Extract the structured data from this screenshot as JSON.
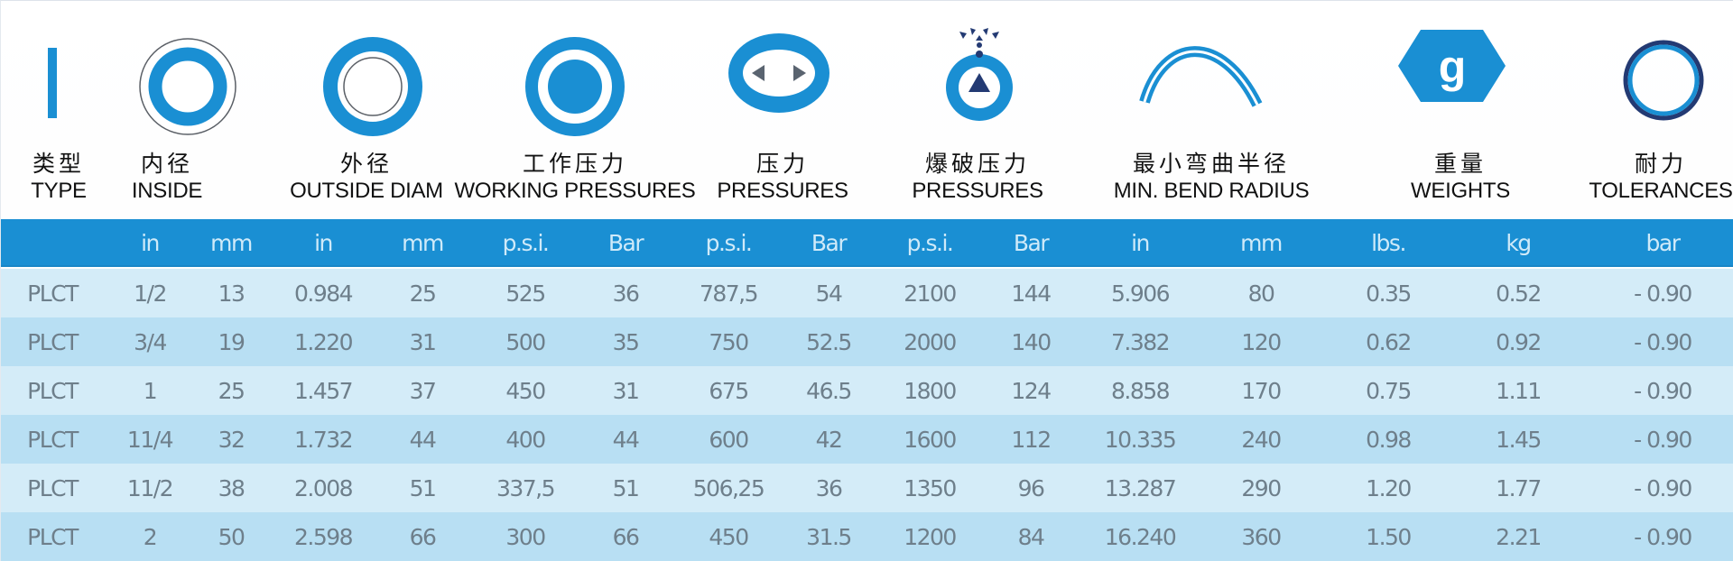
{
  "headers": [
    {
      "id": "type",
      "cn": "类型",
      "en": "TYPE"
    },
    {
      "id": "inside",
      "cn": "内径",
      "en": "INSIDE"
    },
    {
      "id": "outside",
      "cn": "外径",
      "en": "OUTSIDE DIAM"
    },
    {
      "id": "working",
      "cn": "工作压力",
      "en": "WORKING PRESSURES"
    },
    {
      "id": "pressure",
      "cn": "压力",
      "en": "PRESSURES"
    },
    {
      "id": "burst",
      "cn": "爆破压力",
      "en": "PRESSURES"
    },
    {
      "id": "bend",
      "cn": "最小弯曲半径",
      "en": "MIN. BEND RADIUS"
    },
    {
      "id": "weight",
      "cn": "重量",
      "en": "WEIGHTS"
    },
    {
      "id": "tol",
      "cn": "耐力",
      "en": "TOLERANCES"
    }
  ],
  "units": [
    "in",
    "mm",
    "in",
    "mm",
    "p.s.i.",
    "Bar",
    "p.s.i.",
    "Bar",
    "p.s.i.",
    "Bar",
    "in",
    "mm",
    "lbs.",
    "kg",
    "bar"
  ],
  "rows": [
    [
      "PLCT",
      "1/2",
      "13",
      "0.984",
      "25",
      "525",
      "36",
      "787,5",
      "54",
      "2100",
      "144",
      "5.906",
      "80",
      "0.35",
      "0.52",
      "- 0.90"
    ],
    [
      "PLCT",
      "3/4",
      "19",
      "1.220",
      "31",
      "500",
      "35",
      "750",
      "52.5",
      "2000",
      "140",
      "7.382",
      "120",
      "0.62",
      "0.92",
      "- 0.90"
    ],
    [
      "PLCT",
      "1",
      "25",
      "1.457",
      "37",
      "450",
      "31",
      "675",
      "46.5",
      "1800",
      "124",
      "8.858",
      "170",
      "0.75",
      "1.11",
      "- 0.90"
    ],
    [
      "PLCT",
      "11/4",
      "32",
      "1.732",
      "44",
      "400",
      "44",
      "600",
      "42",
      "1600",
      "112",
      "10.335",
      "240",
      "0.98",
      "1.45",
      "- 0.90"
    ],
    [
      "PLCT",
      "11/2",
      "38",
      "2.008",
      "51",
      "337,5",
      "51",
      "506,25",
      "36",
      "1350",
      "96",
      "13.287",
      "290",
      "1.20",
      "1.77",
      "- 0.90"
    ],
    [
      "PLCT",
      "2",
      "50",
      "2.598",
      "66",
      "300",
      "66",
      "450",
      "31.5",
      "1200",
      "84",
      "16.240",
      "360",
      "1.50",
      "2.21",
      "- 0.90"
    ]
  ],
  "icons": {
    "type": "bar-icon",
    "inside": "inner-diameter-ring-icon",
    "outside": "outer-diameter-ring-icon",
    "working": "working-pressure-disc-icon",
    "pressure": "pressure-arrows-icon",
    "burst": "burst-pressure-icon",
    "bend": "bend-radius-arc-icon",
    "weight": "weight-hexagon-icon",
    "tol": "tolerance-ring-icon",
    "weight_glyph": "g"
  },
  "colors": {
    "accent": "#1a8fd3",
    "row_light": "#d4ecf8",
    "row_mid": "#b8dff3",
    "unit_text": "#cfeaf9",
    "cell_text": "#6e7f8b",
    "navy": "#233a73"
  }
}
